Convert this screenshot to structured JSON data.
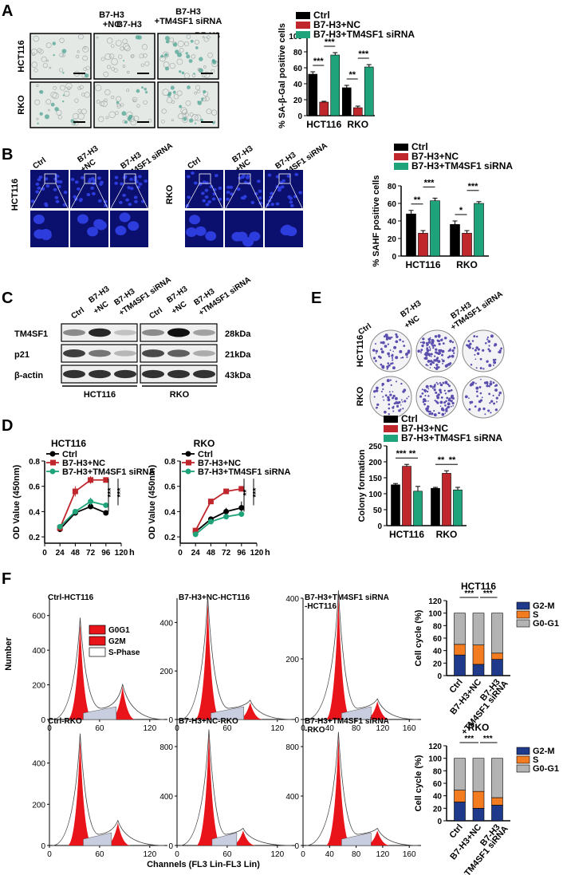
{
  "panels": {
    "A": "A",
    "B": "B",
    "C": "C",
    "D": "D",
    "E": "E",
    "F": "F"
  },
  "conditions": [
    "Ctrl",
    "B7-H3\n+NC",
    "B7-H3\n+TM4SF1 siRNA"
  ],
  "cell_lines": [
    "HCT116",
    "RKO"
  ],
  "colors": {
    "ctrl": "#000000",
    "nc": "#c0272d",
    "si": "#1fa37a",
    "g2m": "#1f3a8a",
    "s": "#f47c20",
    "g0g1": "#b3b3b3",
    "hist": "#e8141a",
    "micro_bg": "#0b0f6e",
    "nuclei": "#2d3cdc",
    "sa_cells": "#5aa99a",
    "colony": "#5a4fae"
  },
  "western": {
    "proteins": [
      "TM4SF1",
      "p21",
      "β-actin"
    ],
    "sizes": [
      "28kDa",
      "21kDa",
      "43kDa"
    ]
  },
  "flow": {
    "titles": [
      "Ctrl-HCT116",
      "B7-H3+NC-HCT116",
      "B7-H3+TM4SF1 siRNA\n-HCT116",
      "Ctrl-RKO",
      "B7-H3+NC-RKO",
      "B7-H3+TM4SF1 siRNA\n-RKO"
    ],
    "legend": [
      "G0G1",
      "G2M",
      "S-Phase"
    ],
    "ylabel": "Number",
    "xlabel": "Channels (FL3 Lin-FL3 Lin)"
  },
  "chart_data": [
    {
      "id": "A",
      "type": "bar",
      "categories": [
        "HCT116",
        "RKO"
      ],
      "series": [
        {
          "name": "Ctrl",
          "values": [
            52,
            35
          ],
          "err": [
            3,
            3
          ]
        },
        {
          "name": "B7-H3+NC",
          "values": [
            17,
            10
          ],
          "err": [
            1,
            2
          ]
        },
        {
          "name": "B7-H3+TM4SF1 siRNA",
          "values": [
            76,
            61
          ],
          "err": [
            3,
            3
          ]
        }
      ],
      "ylabel": "% SA-β-Gal positive cells",
      "ylim": [
        0,
        100
      ],
      "yticks": [
        0,
        20,
        40,
        60,
        80,
        100
      ],
      "significance": [
        "***",
        "***",
        "**",
        "***"
      ]
    },
    {
      "id": "B",
      "type": "bar",
      "categories": [
        "HCT116",
        "RKO"
      ],
      "series": [
        {
          "name": "Ctrl",
          "values": [
            48,
            36
          ],
          "err": [
            4,
            4
          ]
        },
        {
          "name": "B7-H3+NC",
          "values": [
            26,
            26
          ],
          "err": [
            3,
            3
          ]
        },
        {
          "name": "B7-H3+TM4SF1 siRNA",
          "values": [
            63,
            60
          ],
          "err": [
            3,
            2
          ]
        }
      ],
      "ylabel": "% SAHF positive cells",
      "ylim": [
        0,
        80
      ],
      "yticks": [
        0,
        20,
        40,
        60,
        80
      ],
      "significance": [
        "**",
        "***",
        "*",
        "***"
      ]
    },
    {
      "id": "E",
      "type": "bar",
      "categories": [
        "HCT116",
        "RKO"
      ],
      "series": [
        {
          "name": "Ctrl",
          "values": [
            128,
            117
          ],
          "err": [
            4,
            3
          ]
        },
        {
          "name": "B7-H3+NC",
          "values": [
            186,
            164
          ],
          "err": [
            6,
            8
          ]
        },
        {
          "name": "B7-H3+TM4SF1 siRNA",
          "values": [
            108,
            112
          ],
          "err": [
            15,
            8
          ]
        }
      ],
      "ylabel": "Colony formation",
      "ylim": [
        0,
        250
      ],
      "yticks": [
        0,
        50,
        100,
        150,
        200,
        250
      ],
      "significance": [
        "***",
        "**",
        "**",
        "**"
      ]
    },
    {
      "id": "D1",
      "type": "line",
      "title": "HCT116",
      "x": [
        24,
        48,
        72,
        96
      ],
      "series": [
        {
          "name": "Ctrl",
          "values": [
            0.26,
            0.39,
            0.44,
            0.39
          ]
        },
        {
          "name": "B7-H3+NC",
          "values": [
            0.27,
            0.56,
            0.65,
            0.65
          ]
        },
        {
          "name": "B7-H3+TM4SF1 siRNA",
          "values": [
            0.28,
            0.4,
            0.48,
            0.45
          ]
        }
      ],
      "err": [
        [
          0.01,
          0.02,
          0.02,
          0.01
        ],
        [
          0.01,
          0.04,
          0.03,
          0.01
        ],
        [
          0.01,
          0.02,
          0.03,
          0.01
        ]
      ],
      "ylabel": "OD Value (450nm)",
      "xlabel": "h",
      "ylim": [
        0.15,
        0.8
      ],
      "yticks": [
        0.2,
        0.4,
        0.6,
        0.8
      ],
      "xticks": [
        0,
        24,
        48,
        72,
        96,
        120
      ],
      "significance": [
        "***",
        "***"
      ]
    },
    {
      "id": "D2",
      "type": "line",
      "title": "RKO",
      "x": [
        24,
        48,
        72,
        96
      ],
      "series": [
        {
          "name": "Ctrl",
          "values": [
            0.24,
            0.34,
            0.4,
            0.43
          ]
        },
        {
          "name": "B7-H3+NC",
          "values": [
            0.25,
            0.48,
            0.56,
            0.58
          ]
        },
        {
          "name": "B7-H3+TM4SF1 siRNA",
          "values": [
            0.22,
            0.32,
            0.36,
            0.38
          ]
        }
      ],
      "err": [
        [
          0.01,
          0.02,
          0.03,
          0.05
        ],
        [
          0.01,
          0.02,
          0.02,
          0.01
        ],
        [
          0.01,
          0.02,
          0.02,
          0.02
        ]
      ],
      "ylabel": "OD Value (450nm)",
      "xlabel": "h",
      "ylim": [
        0.15,
        0.8
      ],
      "yticks": [
        0.2,
        0.4,
        0.6,
        0.8
      ],
      "xticks": [
        0,
        24,
        48,
        72,
        96,
        120
      ],
      "significance": [
        "**",
        "***"
      ]
    },
    {
      "id": "F_HCT116",
      "type": "bar",
      "title": "HCT116",
      "stacked": true,
      "categories": [
        "Ctrl",
        "B7-H3+NC",
        "B7-H3\n+TM4SF1 siRNA"
      ],
      "series": [
        {
          "name": "G2-M",
          "values": [
            33,
            18,
            26
          ]
        },
        {
          "name": "S",
          "values": [
            17,
            31,
            10
          ]
        },
        {
          "name": "G0-G1",
          "values": [
            50,
            51,
            64
          ]
        }
      ],
      "ylabel": "Cell cycle (%)",
      "ylim": [
        0,
        120
      ],
      "yticks": [
        0,
        20,
        40,
        60,
        80,
        100,
        120
      ],
      "significance": [
        "***",
        "***"
      ]
    },
    {
      "id": "F_RKO",
      "type": "bar",
      "title": "RKO",
      "stacked": true,
      "categories": [
        "Ctrl",
        "B7-H3+NC",
        "B7-H3\n+TM4SF1 siRNA"
      ],
      "series": [
        {
          "name": "G2-M",
          "values": [
            30,
            20,
            25
          ]
        },
        {
          "name": "S",
          "values": [
            19,
            27,
            12
          ]
        },
        {
          "name": "G0-G1",
          "values": [
            51,
            53,
            63
          ]
        }
      ],
      "ylabel": "Cell cycle (%)",
      "ylim": [
        0,
        120
      ],
      "yticks": [
        0,
        20,
        40,
        60,
        80,
        100,
        120
      ],
      "significance": [
        "***",
        "***"
      ]
    }
  ]
}
